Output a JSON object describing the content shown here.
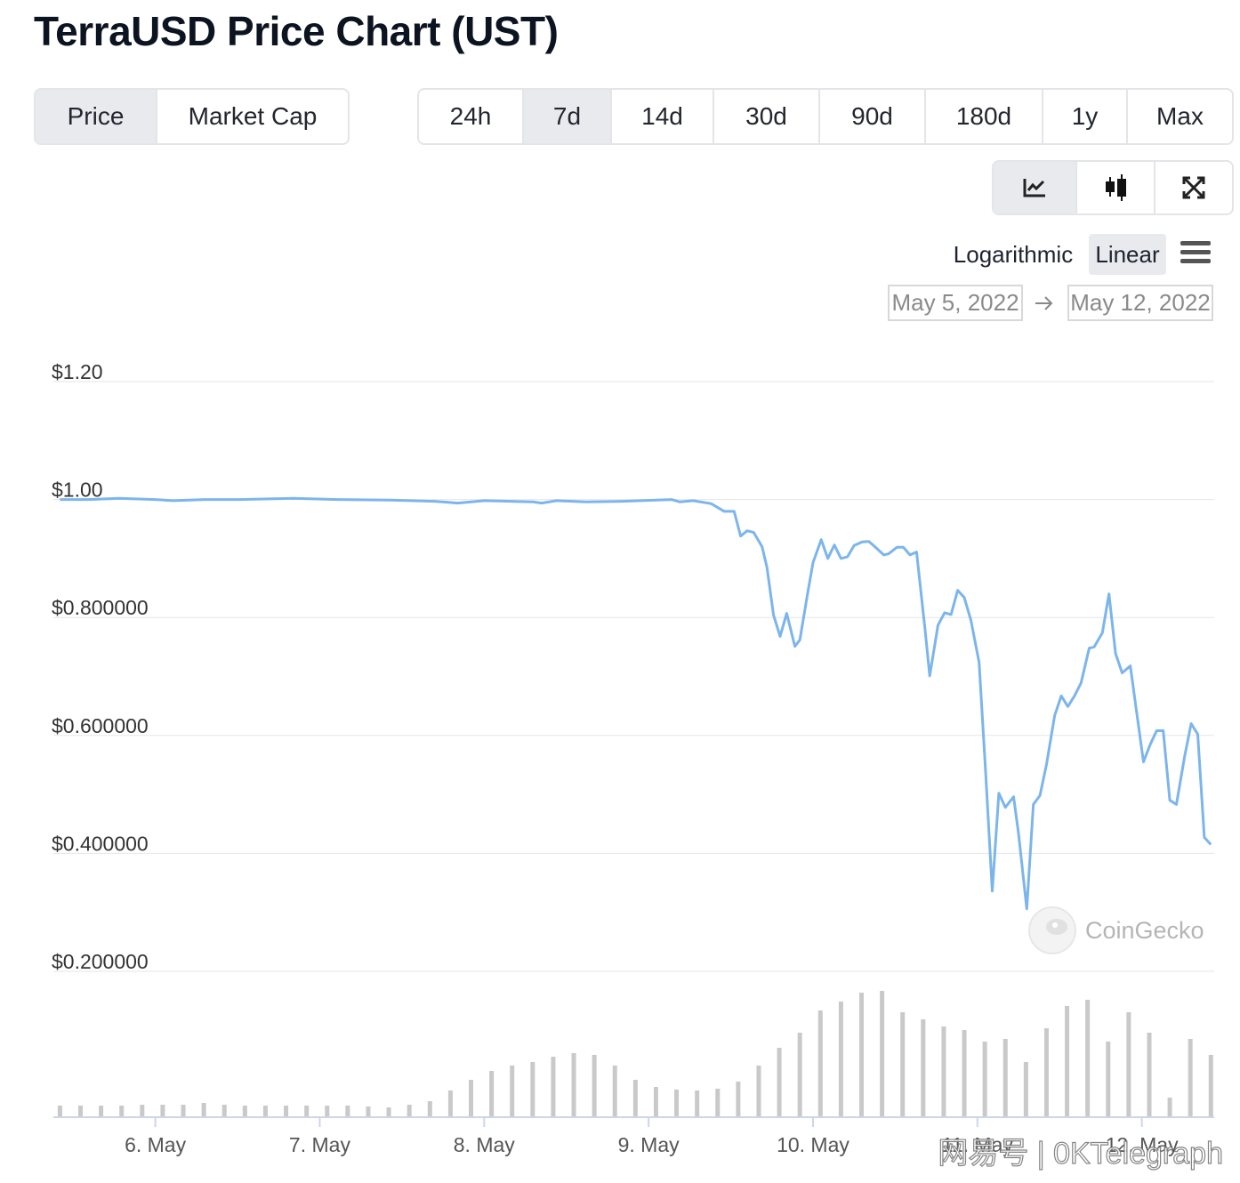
{
  "header": {
    "title": "TerraUSD Price Chart (UST)"
  },
  "tabs": {
    "items": [
      "Price",
      "Market Cap"
    ],
    "selected": 0
  },
  "ranges": {
    "items": [
      "24h",
      "7d",
      "14d",
      "30d",
      "90d",
      "180d",
      "1y",
      "Max"
    ],
    "selected": 1
  },
  "scale": {
    "items": [
      "Logarithmic",
      "Linear"
    ],
    "selected": 1
  },
  "date_range": {
    "from": "May 5, 2022",
    "to": "May 12, 2022"
  },
  "watermarks": [
    "CoinGecko",
    "网易号 | 0KTelegraph"
  ],
  "chart_data": {
    "type": "line",
    "color": "#7cb5ec",
    "grid": true,
    "x": [
      5.42,
      5.59,
      5.78,
      6.0,
      6.11,
      6.3,
      6.51,
      6.84,
      7.11,
      7.43,
      7.7,
      7.84,
      8.0,
      8.3,
      8.35,
      8.44,
      8.62,
      8.84,
      9.14,
      9.19,
      9.27,
      9.38,
      9.46,
      9.52,
      9.56,
      9.6,
      9.64,
      9.69,
      9.72,
      9.76,
      9.8,
      9.84,
      9.89,
      9.92,
      9.97,
      10.0,
      10.05,
      10.09,
      10.13,
      10.17,
      10.21,
      10.25,
      10.3,
      10.34,
      10.38,
      10.43,
      10.46,
      10.51,
      10.55,
      10.59,
      10.63,
      10.68,
      10.71,
      10.76,
      10.8,
      10.84,
      10.88,
      10.92,
      10.96,
      11.01,
      11.05,
      11.09,
      11.13,
      11.17,
      11.22,
      11.25,
      11.3,
      11.34,
      11.38,
      11.42,
      11.47,
      11.51,
      11.55,
      11.59,
      11.63,
      11.68,
      11.71,
      11.76,
      11.8,
      11.84,
      11.88,
      11.93,
      11.96,
      12.01,
      12.05,
      12.09,
      12.13,
      12.17,
      12.21,
      12.26,
      12.3,
      12.34,
      12.38,
      12.42
    ],
    "values": [
      1.0,
      1.0,
      1.002,
      1.0,
      0.998,
      1.0,
      1.0,
      1.002,
      1.0,
      0.999,
      0.997,
      0.994,
      0.998,
      0.996,
      0.994,
      0.998,
      0.996,
      0.997,
      1.0,
      0.996,
      0.998,
      0.993,
      0.98,
      0.98,
      0.938,
      0.947,
      0.944,
      0.92,
      0.885,
      0.804,
      0.768,
      0.807,
      0.751,
      0.762,
      0.845,
      0.893,
      0.932,
      0.9,
      0.923,
      0.9,
      0.903,
      0.922,
      0.928,
      0.929,
      0.919,
      0.906,
      0.908,
      0.919,
      0.919,
      0.906,
      0.911,
      0.783,
      0.701,
      0.787,
      0.808,
      0.805,
      0.846,
      0.834,
      0.796,
      0.724,
      0.536,
      0.336,
      0.502,
      0.478,
      0.496,
      0.434,
      0.306,
      0.483,
      0.498,
      0.551,
      0.634,
      0.667,
      0.649,
      0.667,
      0.689,
      0.748,
      0.75,
      0.774,
      0.84,
      0.739,
      0.706,
      0.718,
      0.656,
      0.555,
      0.584,
      0.608,
      0.608,
      0.49,
      0.483,
      0.564,
      0.62,
      0.602,
      0.427,
      0.415
    ],
    "xlim": [
      5.38,
      12.44
    ],
    "ylim": [
      0.2,
      1.2
    ],
    "yticks": [
      {
        "value": 1.2,
        "label": "$1.20"
      },
      {
        "value": 1.0,
        "label": "$1.00"
      },
      {
        "value": 0.8,
        "label": "$0.800000"
      },
      {
        "value": 0.6,
        "label": "$0.600000"
      },
      {
        "value": 0.4,
        "label": "$0.400000"
      },
      {
        "value": 0.2,
        "label": "$0.200000"
      }
    ],
    "xticks": [
      {
        "value": 6,
        "label": "6. May"
      },
      {
        "value": 7,
        "label": "7. May"
      },
      {
        "value": 8,
        "label": "8. May"
      },
      {
        "value": 9,
        "label": "9. May"
      },
      {
        "value": 10,
        "label": "10. May"
      },
      {
        "value": 11,
        "label": "11. May"
      },
      {
        "value": 12,
        "label": "12. May"
      }
    ],
    "volume": {
      "color": "#c9c9c9",
      "x": [
        5.42,
        5.545,
        5.67,
        5.795,
        5.92,
        6.045,
        6.17,
        6.295,
        6.42,
        6.545,
        6.67,
        6.795,
        6.92,
        7.045,
        7.17,
        7.295,
        7.42,
        7.545,
        7.67,
        7.795,
        7.92,
        8.045,
        8.17,
        8.295,
        8.42,
        8.545,
        8.67,
        8.795,
        8.92,
        9.045,
        9.17,
        9.295,
        9.42,
        9.545,
        9.67,
        9.795,
        9.92,
        10.045,
        10.17,
        10.295,
        10.42,
        10.545,
        10.67,
        10.795,
        10.92,
        11.045,
        11.17,
        11.295,
        11.42,
        11.545,
        11.67,
        11.795,
        11.92,
        12.045,
        12.17,
        12.295,
        12.42
      ],
      "values": [
        13,
        13,
        13,
        13,
        14,
        14,
        14,
        16,
        14,
        13,
        13,
        13,
        13,
        13,
        13,
        12,
        11,
        14,
        18,
        30,
        42,
        52,
        58,
        62,
        68,
        72,
        70,
        58,
        42,
        34,
        31,
        30,
        32,
        40,
        58,
        78,
        95,
        120,
        130,
        140,
        142,
        118,
        110,
        102,
        98,
        85,
        88,
        62,
        100,
        125,
        132,
        85,
        118,
        95,
        22,
        88,
        70
      ]
    }
  }
}
